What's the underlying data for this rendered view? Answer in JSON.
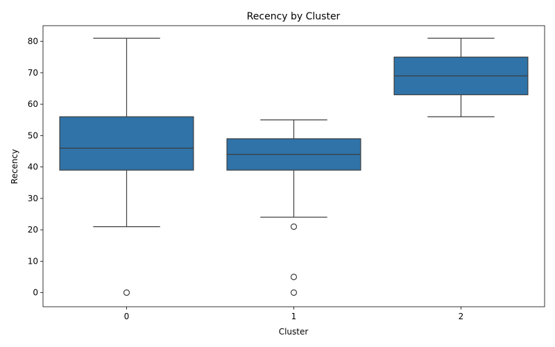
{
  "chart_data": {
    "type": "box",
    "title": "Recency by Cluster",
    "xlabel": "Cluster",
    "ylabel": "Recency",
    "categories": [
      "0",
      "1",
      "2"
    ],
    "yticks": [
      0,
      10,
      20,
      30,
      40,
      50,
      60,
      70,
      80
    ],
    "ylim": [
      -4.5,
      85
    ],
    "grid": false,
    "box_color": "#2f73a8",
    "line_color": "#3d3d3d",
    "boxes": [
      {
        "category": "0",
        "whisker_low": 21,
        "q1": 39,
        "median": 46,
        "q3": 56,
        "whisker_high": 81,
        "outliers": [
          0
        ]
      },
      {
        "category": "1",
        "whisker_low": 24,
        "q1": 39,
        "median": 44,
        "q3": 49,
        "whisker_high": 55,
        "outliers": [
          21,
          5,
          0
        ]
      },
      {
        "category": "2",
        "whisker_low": 56,
        "q1": 63,
        "median": 69,
        "q3": 75,
        "whisker_high": 81,
        "outliers": []
      }
    ]
  }
}
